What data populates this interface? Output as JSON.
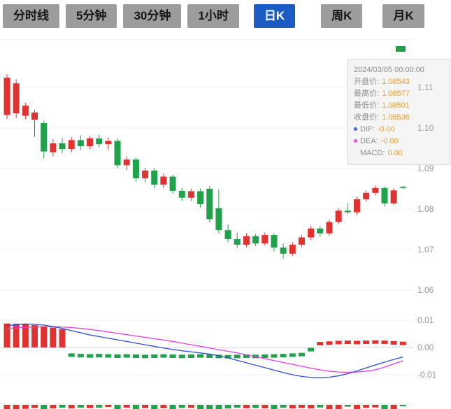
{
  "toolbar": {
    "items": [
      {
        "label": "分时线",
        "active": false
      },
      {
        "label": "5分钟",
        "active": false
      },
      {
        "label": "30分钟",
        "active": false
      },
      {
        "label": "1小时",
        "active": false
      },
      {
        "label": "日K",
        "active": true
      },
      {
        "label": "周K",
        "active": false
      },
      {
        "label": "月K",
        "active": false
      }
    ],
    "active_color": "#1b5cc4",
    "inactive_color": "#9c9c9c"
  },
  "tooltip": {
    "datetime": "2024/03/05 00:00:00",
    "rows": [
      {
        "label": "开盘价:",
        "value": "1.08543"
      },
      {
        "label": "最高价:",
        "value": "1.08577"
      },
      {
        "label": "最低价:",
        "value": "1.08501"
      },
      {
        "label": "收盘价:",
        "value": "1.08536"
      }
    ],
    "indicator_rows": [
      {
        "label": "DIF:",
        "value": "-0.00",
        "dot_color": "#4466dd"
      },
      {
        "label": "DEA:",
        "value": "-0.00",
        "dot_color": "#e253e2"
      },
      {
        "label": "MACD:",
        "value": "0.00",
        "dot_color": null
      }
    ],
    "value_color": "#e6a23c",
    "label_color": "#8c8c8c"
  },
  "chart_data": {
    "type": "candlestick",
    "title": "",
    "subtitle": "Daily (日K) candles with MACD sub-chart; CN convention: red = up, green = down",
    "last_candle_datetime": "2024/03/05 00:00:00",
    "y_axis": {
      "labels": [
        "1.11",
        "1.10",
        "1.09",
        "1.08",
        "1.07",
        "1.06"
      ],
      "values": [
        1.11,
        1.1,
        1.09,
        1.08,
        1.07,
        1.06
      ],
      "range": [
        1.055,
        1.115
      ],
      "grid": true,
      "position": "right"
    },
    "macd_axis": {
      "labels": [
        "0.01",
        "0.00",
        "-0.01"
      ],
      "values": [
        0.01,
        0,
        -0.01
      ],
      "range": [
        -0.013,
        0.012
      ],
      "position": "right"
    },
    "colors": {
      "up": "#e13232",
      "down": "#1fa24a",
      "dif": "#3050c8",
      "dea": "#e040e0",
      "grid": "#ececec",
      "zero_line": "#d5d5d5",
      "axis_text": "#999999"
    },
    "candles_ohlc": [
      [
        1.1032,
        1.1132,
        1.1022,
        1.1124
      ],
      [
        1.1036,
        1.112,
        1.1024,
        1.111
      ],
      [
        1.103,
        1.1062,
        1.1022,
        1.1055
      ],
      [
        1.102,
        1.1045,
        1.0978,
        1.1038
      ],
      [
        1.1012,
        1.1018,
        1.0925,
        1.0942
      ],
      [
        1.094,
        1.0972,
        1.093,
        1.0962
      ],
      [
        1.0962,
        1.0975,
        1.0938,
        1.0948
      ],
      [
        1.0948,
        1.0978,
        1.094,
        1.097
      ],
      [
        1.097,
        1.0982,
        1.0946,
        1.0955
      ],
      [
        1.0955,
        1.098,
        1.0948,
        1.0974
      ],
      [
        1.0974,
        1.0984,
        1.0952,
        1.096
      ],
      [
        1.096,
        1.0976,
        1.0946,
        1.0968
      ],
      [
        1.0968,
        1.0974,
        1.09,
        1.0908
      ],
      [
        1.0908,
        1.093,
        1.0896,
        1.0922
      ],
      [
        1.0922,
        1.0928,
        1.0868,
        1.0876
      ],
      [
        1.0876,
        1.0902,
        1.0866,
        1.0895
      ],
      [
        1.0895,
        1.09,
        1.0852,
        1.086
      ],
      [
        1.086,
        1.0888,
        1.0852,
        1.088
      ],
      [
        1.088,
        1.0885,
        1.0838,
        1.0845
      ],
      [
        1.0845,
        1.0852,
        1.082,
        1.0828
      ],
      [
        1.0828,
        1.085,
        1.082,
        1.0844
      ],
      [
        1.0844,
        1.085,
        1.0804,
        1.0812
      ],
      [
        1.085,
        1.0857,
        1.0768,
        1.0775
      ],
      [
        1.0802,
        1.0848,
        1.074,
        1.0748
      ],
      [
        1.0748,
        1.0762,
        1.0718,
        1.0726
      ],
      [
        1.0726,
        1.0742,
        1.0704,
        1.0712
      ],
      [
        1.0712,
        1.074,
        1.0706,
        1.0733
      ],
      [
        1.0733,
        1.0738,
        1.0708,
        1.0715
      ],
      [
        1.0715,
        1.0742,
        1.071,
        1.0736
      ],
      [
        1.0736,
        1.074,
        1.0695,
        1.0705
      ],
      [
        1.0705,
        1.0715,
        1.0678,
        1.069
      ],
      [
        1.069,
        1.0718,
        1.0684,
        1.0712
      ],
      [
        1.0712,
        1.0736,
        1.0706,
        1.073
      ],
      [
        1.073,
        1.0758,
        1.0724,
        1.0752
      ],
      [
        1.0752,
        1.0758,
        1.0732,
        1.074
      ],
      [
        1.074,
        1.0774,
        1.0734,
        1.0768
      ],
      [
        1.0768,
        1.0802,
        1.0762,
        1.0796
      ],
      [
        1.0796,
        1.0815,
        1.0788,
        1.0792
      ],
      [
        1.0792,
        1.083,
        1.0786,
        1.0824
      ],
      [
        1.0824,
        1.0846,
        1.0818,
        1.084
      ],
      [
        1.084,
        1.0858,
        1.0834,
        1.0852
      ],
      [
        1.0852,
        1.0856,
        1.0806,
        1.0814
      ],
      [
        1.0814,
        1.0852,
        1.081,
        1.0846
      ],
      [
        1.08543,
        1.08577,
        1.08501,
        1.08536
      ]
    ],
    "macd": {
      "dif": [
        0.008,
        0.0084,
        0.0086,
        0.0085,
        0.0082,
        0.0077,
        0.007,
        0.0062,
        0.0054,
        0.0046,
        0.004,
        0.0034,
        0.0028,
        0.0022,
        0.0016,
        0.001,
        0.0004,
        -0.0002,
        -0.0007,
        -0.0012,
        -0.0016,
        -0.002,
        -0.0024,
        -0.003,
        -0.0038,
        -0.0047,
        -0.0056,
        -0.0065,
        -0.0074,
        -0.0083,
        -0.0092,
        -0.01,
        -0.0106,
        -0.011,
        -0.0111,
        -0.0109,
        -0.0104,
        -0.0096,
        -0.0086,
        -0.0075,
        -0.0064,
        -0.0054,
        -0.0044,
        -0.0035
      ],
      "dea": [
        0.007,
        0.0072,
        0.0074,
        0.0075,
        0.0076,
        0.0076,
        0.0075,
        0.0073,
        0.007,
        0.0066,
        0.0062,
        0.0057,
        0.0052,
        0.0047,
        0.0042,
        0.0037,
        0.0032,
        0.0027,
        0.0022,
        0.0016,
        0.001,
        0.0004,
        -0.0002,
        -0.0008,
        -0.0014,
        -0.002,
        -0.0027,
        -0.0034,
        -0.0041,
        -0.0048,
        -0.0055,
        -0.0062,
        -0.0069,
        -0.0076,
        -0.0082,
        -0.0087,
        -0.009,
        -0.0091,
        -0.009,
        -0.0087,
        -0.0082,
        -0.0072,
        -0.006,
        -0.0049
      ],
      "histogram": [
        0.0088,
        0.0087,
        0.0085,
        0.0082,
        0.0078,
        0.0073,
        0.0067,
        -0.0028,
        -0.003,
        -0.0031,
        -0.003,
        -0.0031,
        -0.0032,
        -0.0031,
        -0.0032,
        -0.0033,
        -0.0032,
        -0.0031,
        -0.0032,
        -0.0033,
        -0.0032,
        -0.0031,
        -0.0032,
        -0.0033,
        -0.0034,
        -0.0033,
        -0.0032,
        -0.0033,
        -0.0032,
        -0.0031,
        -0.003,
        -0.0028,
        -0.0026,
        -0.0008,
        0.0014,
        0.0016,
        0.0018,
        0.0019,
        0.0018,
        0.0019,
        0.002,
        0.0019,
        0.0017,
        0.0015
      ]
    },
    "legend_position": "tooltip",
    "grid": true
  }
}
